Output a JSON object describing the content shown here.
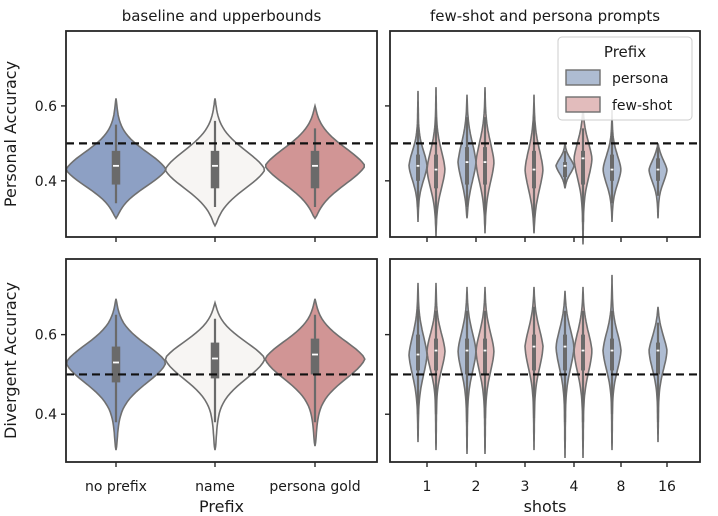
{
  "chart_data": [
    {
      "type": "violin",
      "title": "baseline and upperbounds",
      "ylabel": "Personal Accuracy",
      "xlabel": "",
      "ylim": [
        0.25,
        0.8
      ],
      "yticks": [
        0.4,
        0.6
      ],
      "reference_line": 0.5,
      "categories": [
        "no prefix",
        "name",
        "persona gold"
      ],
      "series": [
        {
          "name": "no prefix",
          "color": "#8da0c4",
          "min": 0.3,
          "q1": 0.39,
          "median": 0.44,
          "q3": 0.48,
          "max": 0.62,
          "whisker_low": 0.34,
          "whisker_high": 0.55,
          "peak": 0.43
        },
        {
          "name": "name",
          "color": "#f7f5f3",
          "min": 0.28,
          "q1": 0.38,
          "median": 0.44,
          "q3": 0.48,
          "max": 0.62,
          "whisker_low": 0.33,
          "whisker_high": 0.56,
          "peak": 0.43
        },
        {
          "name": "persona gold",
          "color": "#d19595",
          "min": 0.3,
          "q1": 0.38,
          "median": 0.44,
          "q3": 0.48,
          "max": 0.6,
          "whisker_low": 0.33,
          "whisker_high": 0.54,
          "peak": 0.44
        }
      ]
    },
    {
      "type": "violin",
      "title": "few-shot and persona prompts",
      "ylabel": "",
      "xlabel": "",
      "ylim": [
        0.25,
        0.8
      ],
      "yticks": [
        0.4,
        0.6
      ],
      "reference_line": 0.5,
      "categories": [
        "1",
        "2",
        "3",
        "4",
        "8",
        "16"
      ],
      "legend": {
        "title": "Prefix",
        "position": "top-right",
        "entries": [
          {
            "label": "persona",
            "color": "#aebcd2"
          },
          {
            "label": "few-shot",
            "color": "#e2bcbc"
          }
        ]
      },
      "series": [
        {
          "name": "persona",
          "color": "#aebcd2",
          "stats": [
            {
              "x": "1",
              "min": 0.29,
              "q1": 0.4,
              "median": 0.44,
              "q3": 0.47,
              "max": 0.64,
              "whisker_low": 0.33,
              "whisker_high": 0.55
            },
            {
              "x": "2",
              "min": 0.3,
              "q1": 0.39,
              "median": 0.45,
              "q3": 0.49,
              "max": 0.63,
              "whisker_low": 0.33,
              "whisker_high": 0.57
            },
            {
              "x": "3",
              "min": null,
              "q1": null,
              "median": null,
              "q3": null,
              "max": null,
              "whisker_low": null,
              "whisker_high": null
            },
            {
              "x": "4",
              "min": 0.38,
              "q1": 0.41,
              "median": 0.44,
              "q3": 0.45,
              "max": 0.5,
              "whisker_low": 0.39,
              "whisker_high": 0.48
            },
            {
              "x": "8",
              "min": 0.29,
              "q1": 0.4,
              "median": 0.43,
              "q3": 0.47,
              "max": 0.59,
              "whisker_low": 0.34,
              "whisker_high": 0.53
            },
            {
              "x": "16",
              "min": 0.3,
              "q1": 0.4,
              "median": 0.43,
              "q3": 0.46,
              "max": 0.5,
              "whisker_low": 0.36,
              "whisker_high": 0.49
            }
          ]
        },
        {
          "name": "few-shot",
          "color": "#e2bcbc",
          "stats": [
            {
              "x": "1",
              "min": 0.25,
              "q1": 0.38,
              "median": 0.43,
              "q3": 0.47,
              "max": 0.65,
              "whisker_low": 0.3,
              "whisker_high": 0.57
            },
            {
              "x": "2",
              "min": 0.26,
              "q1": 0.39,
              "median": 0.45,
              "q3": 0.49,
              "max": 0.65,
              "whisker_low": 0.31,
              "whisker_high": 0.57
            },
            {
              "x": "3",
              "min": 0.26,
              "q1": 0.38,
              "median": 0.43,
              "q3": 0.48,
              "max": 0.63,
              "whisker_low": 0.3,
              "whisker_high": 0.57
            },
            {
              "x": "4",
              "min": 0.23,
              "q1": 0.39,
              "median": 0.46,
              "q3": 0.48,
              "max": 0.6,
              "whisker_low": 0.29,
              "whisker_high": 0.54
            },
            {
              "x": "8",
              "min": null,
              "q1": null,
              "median": null,
              "q3": null,
              "max": null,
              "whisker_low": null,
              "whisker_high": null
            },
            {
              "x": "16",
              "min": null,
              "q1": null,
              "median": null,
              "q3": null,
              "max": null,
              "whisker_low": null,
              "whisker_high": null
            }
          ]
        }
      ]
    },
    {
      "type": "violin",
      "title": "",
      "ylabel": "Divergent Accuracy",
      "xlabel": "Prefix",
      "ylim": [
        0.28,
        0.79
      ],
      "yticks": [
        0.4,
        0.6
      ],
      "reference_line": 0.5,
      "categories": [
        "no prefix",
        "name",
        "persona gold"
      ],
      "series": [
        {
          "name": "no prefix",
          "color": "#8da0c4",
          "min": 0.31,
          "q1": 0.48,
          "median": 0.53,
          "q3": 0.57,
          "max": 0.69,
          "whisker_low": 0.38,
          "whisker_high": 0.65,
          "peak": 0.53
        },
        {
          "name": "name",
          "color": "#f7f5f3",
          "min": 0.31,
          "q1": 0.49,
          "median": 0.54,
          "q3": 0.58,
          "max": 0.68,
          "whisker_low": 0.38,
          "whisker_high": 0.64,
          "peak": 0.54
        },
        {
          "name": "persona gold",
          "color": "#d19595",
          "min": 0.32,
          "q1": 0.5,
          "median": 0.55,
          "q3": 0.59,
          "max": 0.69,
          "whisker_low": 0.38,
          "whisker_high": 0.65,
          "peak": 0.54
        }
      ]
    },
    {
      "type": "violin",
      "title": "",
      "ylabel": "",
      "xlabel": "shots",
      "ylim": [
        0.28,
        0.79
      ],
      "yticks": [
        0.4,
        0.6
      ],
      "reference_line": 0.5,
      "categories": [
        "1",
        "2",
        "3",
        "4",
        "8",
        "16"
      ],
      "series": [
        {
          "name": "persona",
          "color": "#aebcd2",
          "stats": [
            {
              "x": "1",
              "min": 0.33,
              "q1": 0.51,
              "median": 0.55,
              "q3": 0.6,
              "max": 0.73,
              "whisker_low": 0.4,
              "whisker_high": 0.67
            },
            {
              "x": "2",
              "min": 0.3,
              "q1": 0.5,
              "median": 0.56,
              "q3": 0.59,
              "max": 0.72,
              "whisker_low": 0.38,
              "whisker_high": 0.66
            },
            {
              "x": "3",
              "min": null,
              "q1": null,
              "median": null,
              "q3": null,
              "max": null,
              "whisker_low": null,
              "whisker_high": null
            },
            {
              "x": "4",
              "min": 0.29,
              "q1": 0.51,
              "median": 0.57,
              "q3": 0.6,
              "max": 0.71,
              "whisker_low": 0.38,
              "whisker_high": 0.66
            },
            {
              "x": "8",
              "min": 0.31,
              "q1": 0.51,
              "median": 0.56,
              "q3": 0.59,
              "max": 0.75,
              "whisker_low": 0.4,
              "whisker_high": 0.66
            },
            {
              "x": "16",
              "min": 0.33,
              "q1": 0.5,
              "median": 0.56,
              "q3": 0.58,
              "max": 0.67,
              "whisker_low": 0.38,
              "whisker_high": 0.63
            }
          ]
        },
        {
          "name": "few-shot",
          "color": "#e2bcbc",
          "stats": [
            {
              "x": "1",
              "min": 0.31,
              "q1": 0.51,
              "median": 0.56,
              "q3": 0.59,
              "max": 0.73,
              "whisker_low": 0.4,
              "whisker_high": 0.66
            },
            {
              "x": "2",
              "min": 0.3,
              "q1": 0.5,
              "median": 0.56,
              "q3": 0.59,
              "max": 0.72,
              "whisker_low": 0.39,
              "whisker_high": 0.66
            },
            {
              "x": "3",
              "min": 0.31,
              "q1": 0.51,
              "median": 0.57,
              "q3": 0.6,
              "max": 0.72,
              "whisker_low": 0.39,
              "whisker_high": 0.67
            },
            {
              "x": "4",
              "min": 0.29,
              "q1": 0.51,
              "median": 0.56,
              "q3": 0.6,
              "max": 0.72,
              "whisker_low": 0.38,
              "whisker_high": 0.66
            },
            {
              "x": "8",
              "min": null,
              "q1": null,
              "median": null,
              "q3": null,
              "max": null,
              "whisker_low": null,
              "whisker_high": null
            },
            {
              "x": "16",
              "min": null,
              "q1": null,
              "median": null,
              "q3": null,
              "max": null,
              "whisker_low": null,
              "whisker_high": null
            }
          ]
        }
      ]
    }
  ]
}
